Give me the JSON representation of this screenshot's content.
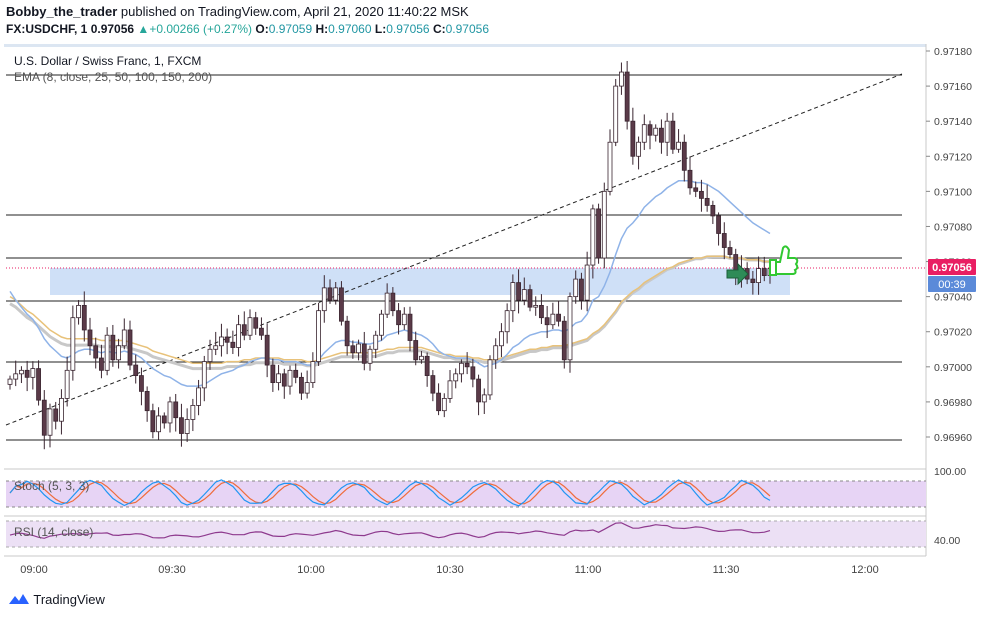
{
  "header": {
    "author": "Bobby_the_trader",
    "published_text": "published on TradingView.com, April 21, 2020 11:40:22 MSK",
    "symbol": "FX:USDCHF, 1",
    "last": "0.97056",
    "change": "+0.00266 (+0.27%)",
    "o_label": "O:",
    "o": "0.97059",
    "h_label": "H:",
    "h": "0.97060",
    "l_label": "L:",
    "l": "0.97056",
    "c_label": "C:",
    "c": "0.97056"
  },
  "footer": {
    "brand": "TradingView"
  },
  "colors": {
    "up": "#ffffff",
    "down": "#5a3a48",
    "wick": "#3a2530",
    "ema_short": "#8fb3e8",
    "ema_mid": "#e8c27a",
    "ema_long": "#c8c8c8",
    "zone": "#cfe0f7",
    "price_badge": "#e91e63",
    "timer_badge": "#5b8ad9",
    "stoch_k": "#2196f3",
    "stoch_d": "#ef6c3c",
    "stoch_band": "#e7d4f5",
    "rsi_line": "#8e3a8e"
  },
  "chart_data": [
    {
      "type": "candlestick",
      "title": "U.S. Dollar / Swiss Franc, 1, FXCM",
      "indicator_label": "EMA (8, close, 25, 50, 100, 150, 200)",
      "ylim": [
        0.9695,
        0.9718
      ],
      "y_ticks": [
        "0.97180",
        "0.97160",
        "0.97140",
        "0.97120",
        "0.97100",
        "0.97080",
        "0.97060",
        "0.97040",
        "0.97020",
        "0.97000",
        "0.96980",
        "0.96960"
      ],
      "x_ticks": [
        "09:00",
        "09:30",
        "10:00",
        "10:30",
        "11:00",
        "11:30",
        "12:00"
      ],
      "current_price": "0.97056",
      "countdown": "00:39",
      "candles_close": [
        0.96993,
        0.96996,
        0.96998,
        0.96994,
        0.96999,
        0.96981,
        0.96961,
        0.96976,
        0.96969,
        0.96982,
        0.96998,
        0.97028,
        0.97035,
        0.97021,
        0.97012,
        0.97005,
        0.96998,
        0.97018,
        0.97004,
        0.97012,
        0.97021,
        0.97001,
        0.96995,
        0.96986,
        0.96975,
        0.96963,
        0.96972,
        0.96968,
        0.9698,
        0.96971,
        0.96962,
        0.9697,
        0.96978,
        0.96988,
        0.97003,
        0.9701,
        0.97012,
        0.97017,
        0.97014,
        0.97011,
        0.97024,
        0.97018,
        0.97028,
        0.97022,
        0.97018,
        0.97001,
        0.96991,
        0.96996,
        0.96989,
        0.96998,
        0.96994,
        0.96985,
        0.96991,
        0.97003,
        0.97032,
        0.97045,
        0.97038,
        0.97045,
        0.97026,
        0.97012,
        0.97008,
        0.97013,
        0.97002,
        0.9701,
        0.97018,
        0.9703,
        0.97042,
        0.97032,
        0.97024,
        0.9703,
        0.97015,
        0.97004,
        0.97006,
        0.96995,
        0.96985,
        0.96975,
        0.96982,
        0.96992,
        0.96996,
        0.97002,
        0.97,
        0.96993,
        0.9698,
        0.96984,
        0.97004,
        0.97012,
        0.9702,
        0.97032,
        0.97048,
        0.97038,
        0.97044,
        0.97034,
        0.97035,
        0.97028,
        0.97024,
        0.9703,
        0.97026,
        0.97004,
        0.9704,
        0.9705,
        0.97038,
        0.97058,
        0.9709,
        0.97062,
        0.971,
        0.97128,
        0.9716,
        0.97168,
        0.9714,
        0.9712,
        0.97128,
        0.97138,
        0.97132,
        0.97136,
        0.97128,
        0.9714,
        0.97124,
        0.97128,
        0.97112,
        0.97102,
        0.971,
        0.97096,
        0.97092,
        0.97086,
        0.97076,
        0.97068,
        0.97064,
        0.97052,
        0.97056,
        0.9705,
        0.97048,
        0.97056,
        0.97052,
        0.97056
      ],
      "ema_short_values": [
        0.97043,
        0.97038,
        0.97034,
        0.9703,
        0.97027,
        0.97022,
        0.97016,
        0.97012,
        0.97009,
        0.97006,
        0.97005,
        0.97007,
        0.97009,
        0.9701,
        0.9701,
        0.97009,
        0.97008,
        0.97009,
        0.97008,
        0.97008,
        0.97009,
        0.97008,
        0.97007,
        0.97005,
        0.97002,
        0.96999,
        0.96997,
        0.96995,
        0.96994,
        0.96992,
        0.9699,
        0.96989,
        0.96989,
        0.96989,
        0.9699,
        0.96992,
        0.96994,
        0.96996,
        0.96997,
        0.96998,
        0.97,
        0.97001,
        0.97003,
        0.97004,
        0.97005,
        0.97005,
        0.97004,
        0.97004,
        0.97003,
        0.97003,
        0.97003,
        0.97002,
        0.97001,
        0.97001,
        0.97004,
        0.97008,
        0.97011,
        0.97014,
        0.97015,
        0.97015,
        0.97014,
        0.97014,
        0.97013,
        0.97013,
        0.97014,
        0.97015,
        0.97018,
        0.97019,
        0.9702,
        0.97021,
        0.9702,
        0.97019,
        0.97018,
        0.97016,
        0.97013,
        0.97009,
        0.97007,
        0.97006,
        0.97005,
        0.97005,
        0.97005,
        0.97004,
        0.97002,
        0.97,
        0.97001,
        0.97002,
        0.97004,
        0.97007,
        0.97011,
        0.97013,
        0.97016,
        0.97018,
        0.97019,
        0.9702,
        0.9702,
        0.97021,
        0.97021,
        0.9702,
        0.97022,
        0.97025,
        0.97026,
        0.9703,
        0.97038,
        0.9704,
        0.97046,
        0.97054,
        0.97064,
        0.97073,
        0.97079,
        0.97082,
        0.97086,
        0.97091,
        0.97094,
        0.97097,
        0.97099,
        0.97102,
        0.97104,
        0.97106,
        0.97106,
        0.97106,
        0.97105,
        0.97105,
        0.97104,
        0.97102,
        0.971,
        0.97097,
        0.97094,
        0.97091,
        0.97088,
        0.97085,
        0.97082,
        0.9708,
        0.97078,
        0.97076
      ],
      "ema_mid_values": [
        0.9704,
        0.97038,
        0.97035,
        0.97032,
        0.9703,
        0.97027,
        0.97024,
        0.97021,
        0.97019,
        0.97017,
        0.97016,
        0.97016,
        0.97016,
        0.97016,
        0.97016,
        0.97016,
        0.97015,
        0.97015,
        0.97015,
        0.97015,
        0.97015,
        0.97014,
        0.97013,
        0.97012,
        0.97011,
        0.97009,
        0.97008,
        0.97007,
        0.97006,
        0.97005,
        0.97004,
        0.97003,
        0.97002,
        0.97002,
        0.97002,
        0.97002,
        0.97002,
        0.97002,
        0.97003,
        0.97003,
        0.97003,
        0.97004,
        0.97004,
        0.97005,
        0.97005,
        0.97005,
        0.97005,
        0.97005,
        0.97004,
        0.97004,
        0.97004,
        0.97004,
        0.97003,
        0.97003,
        0.97004,
        0.97005,
        0.97006,
        0.97007,
        0.97008,
        0.97008,
        0.97008,
        0.97008,
        0.97008,
        0.97008,
        0.97008,
        0.97009,
        0.9701,
        0.9701,
        0.97011,
        0.97011,
        0.97011,
        0.97011,
        0.97011,
        0.9701,
        0.97009,
        0.97008,
        0.97007,
        0.97007,
        0.97006,
        0.97006,
        0.97006,
        0.97005,
        0.97005,
        0.97004,
        0.97004,
        0.97004,
        0.97005,
        0.97006,
        0.97007,
        0.97008,
        0.97009,
        0.9701,
        0.9701,
        0.97011,
        0.97011,
        0.97012,
        0.97012,
        0.97012,
        0.97013,
        0.97014,
        0.97015,
        0.97016,
        0.97019,
        0.97021,
        0.97024,
        0.97028,
        0.97032,
        0.97037,
        0.9704,
        0.97043,
        0.97045,
        0.97048,
        0.9705,
        0.97052,
        0.97054,
        0.97056,
        0.97057,
        0.97059,
        0.9706,
        0.97061,
        0.97062,
        0.97062,
        0.97063,
        0.97063,
        0.97063,
        0.97063,
        0.97062,
        0.97062,
        0.97062,
        0.97061,
        0.97061,
        0.97061,
        0.9706,
        0.9706
      ]
    },
    {
      "type": "line",
      "title": "Stoch (5, 3, 3)",
      "y_ticks": [
        "100.00"
      ],
      "bands": [
        20,
        80
      ],
      "ylim": [
        0,
        100
      ]
    },
    {
      "type": "line",
      "title": "RSI (14, close)",
      "y_ticks": [
        "40.00"
      ],
      "ylim": [
        25,
        75
      ]
    }
  ]
}
